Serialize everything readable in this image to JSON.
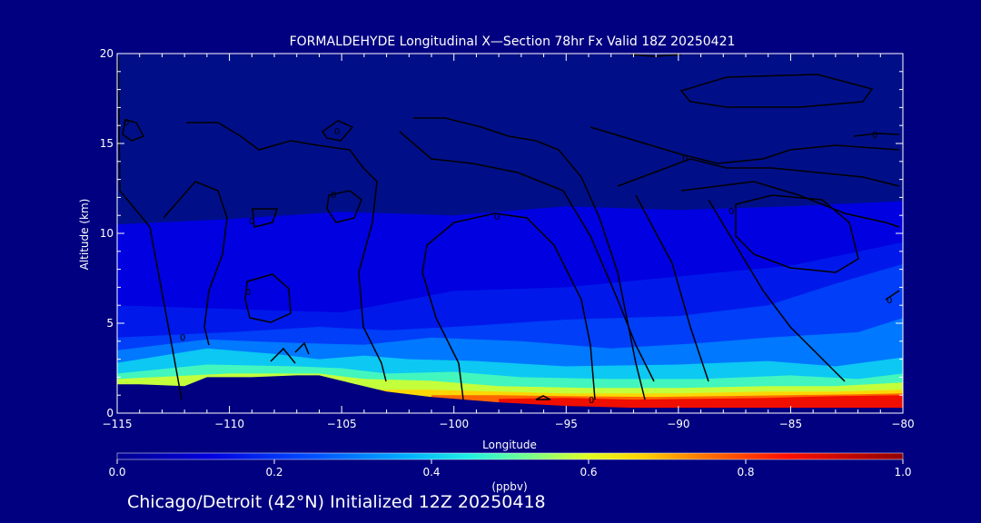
{
  "chart_data": {
    "type": "heatmap",
    "title": "FORMALDEHYDE Longitudinal X—Section 78hr  Fx Valid 18Z 20250421",
    "xlabel": "Longitude",
    "ylabel": "Altitude (km)",
    "xlim": [
      -115,
      -80
    ],
    "ylim": [
      0,
      20
    ],
    "x_ticks": [
      -115,
      -110,
      -105,
      -100,
      -95,
      -90,
      -85,
      -80
    ],
    "x_tick_labels": [
      "−115",
      "−110",
      "−105",
      "−100",
      "−95",
      "−90",
      "−85",
      "−80"
    ],
    "y_ticks": [
      0,
      5,
      10,
      15,
      20
    ],
    "y_tick_labels": [
      "0",
      "5",
      "10",
      "15",
      "20"
    ],
    "colorbar": {
      "label": "(ppbv)",
      "range": [
        0.0,
        1.0
      ],
      "ticks": [
        0.0,
        0.2,
        0.4,
        0.6,
        0.8,
        1.0
      ],
      "tick_labels": [
        "0.0",
        "0.2",
        "0.4",
        "0.6",
        "0.8",
        "1.0"
      ]
    },
    "terrain_km": [
      [
        -115,
        1.6
      ],
      [
        -114,
        1.6
      ],
      [
        -112,
        1.5
      ],
      [
        -111,
        2.0
      ],
      [
        -109,
        2.0
      ],
      [
        -107,
        2.1
      ],
      [
        -106,
        2.1
      ],
      [
        -105,
        1.8
      ],
      [
        -103,
        1.2
      ],
      [
        -101,
        0.9
      ],
      [
        -98,
        0.6
      ],
      [
        -95,
        0.4
      ],
      [
        -92,
        0.3
      ],
      [
        -88,
        0.3
      ],
      [
        -84,
        0.3
      ],
      [
        -80,
        0.3
      ]
    ],
    "concentration_layers": [
      {
        "value": 0.12,
        "profile": [
          [
            -115,
            10.5
          ],
          [
            -110,
            10.8
          ],
          [
            -105,
            11.2
          ],
          [
            -100,
            11.0
          ],
          [
            -95,
            11.5
          ],
          [
            -90,
            11.3
          ],
          [
            -85,
            11.5
          ],
          [
            -80,
            11.8
          ]
        ]
      },
      {
        "value": 0.16,
        "profile": [
          [
            -115,
            6.0
          ],
          [
            -110,
            5.8
          ],
          [
            -105,
            5.6
          ],
          [
            -100,
            6.8
          ],
          [
            -95,
            7.0
          ],
          [
            -90,
            7.6
          ],
          [
            -85,
            8.2
          ],
          [
            -80,
            9.5
          ]
        ]
      },
      {
        "value": 0.22,
        "profile": [
          [
            -115,
            4.2
          ],
          [
            -110,
            4.5
          ],
          [
            -106,
            4.8
          ],
          [
            -103,
            4.6
          ],
          [
            -100,
            4.8
          ],
          [
            -95,
            5.2
          ],
          [
            -90,
            5.4
          ],
          [
            -86,
            6.0
          ],
          [
            -83,
            7.2
          ],
          [
            -80,
            8.3
          ]
        ]
      },
      {
        "value": 0.3,
        "profile": [
          [
            -115,
            3.5
          ],
          [
            -111,
            4.1
          ],
          [
            -107,
            3.9
          ],
          [
            -104,
            3.8
          ],
          [
            -101,
            4.2
          ],
          [
            -97,
            4.0
          ],
          [
            -93,
            3.6
          ],
          [
            -89,
            3.9
          ],
          [
            -86,
            4.2
          ],
          [
            -82,
            4.5
          ],
          [
            -80,
            5.3
          ]
        ]
      },
      {
        "value": 0.4,
        "profile": [
          [
            -115,
            2.8
          ],
          [
            -111,
            3.6
          ],
          [
            -108,
            3.3
          ],
          [
            -106,
            3.0
          ],
          [
            -104,
            3.2
          ],
          [
            -102,
            3.0
          ],
          [
            -99,
            2.9
          ],
          [
            -95,
            2.6
          ],
          [
            -90,
            2.7
          ],
          [
            -86,
            2.9
          ],
          [
            -83,
            2.6
          ],
          [
            -80,
            3.1
          ]
        ]
      },
      {
        "value": 0.48,
        "profile": [
          [
            -115,
            2.2
          ],
          [
            -111,
            2.7
          ],
          [
            -107,
            2.6
          ],
          [
            -105,
            2.5
          ],
          [
            -103,
            2.2
          ],
          [
            -100,
            2.3
          ],
          [
            -97,
            2.0
          ],
          [
            -93,
            1.9
          ],
          [
            -89,
            1.9
          ],
          [
            -85,
            2.1
          ],
          [
            -82,
            1.9
          ],
          [
            -80,
            2.2
          ]
        ]
      },
      {
        "value": 0.58,
        "profile": [
          [
            -115,
            1.9
          ],
          [
            -110,
            2.2
          ],
          [
            -106,
            2.2
          ],
          [
            -104,
            1.9
          ],
          [
            -101,
            1.8
          ],
          [
            -98,
            1.5
          ],
          [
            -94,
            1.4
          ],
          [
            -90,
            1.4
          ],
          [
            -86,
            1.5
          ],
          [
            -83,
            1.5
          ],
          [
            -80,
            1.7
          ]
        ]
      },
      {
        "value": 0.66,
        "profile": [
          [
            -104,
            1.3
          ],
          [
            -101,
            1.3
          ],
          [
            -98,
            1.2
          ],
          [
            -95,
            1.1
          ],
          [
            -90,
            1.1
          ],
          [
            -86,
            1.2
          ],
          [
            -83,
            1.2
          ],
          [
            -80,
            1.3
          ]
        ]
      },
      {
        "value": 0.76,
        "profile": [
          [
            -101,
            1.0
          ],
          [
            -98,
            1.0
          ],
          [
            -95,
            0.95
          ],
          [
            -91,
            0.9
          ],
          [
            -88,
            0.95
          ],
          [
            -85,
            1.0
          ],
          [
            -82,
            1.05
          ],
          [
            -80,
            1.1
          ]
        ]
      },
      {
        "value": 0.87,
        "profile": [
          [
            -98,
            0.8
          ],
          [
            -95,
            0.85
          ],
          [
            -92,
            0.75
          ],
          [
            -89,
            0.8
          ],
          [
            -86,
            0.85
          ],
          [
            -83,
            0.95
          ],
          [
            -80,
            1.0
          ]
        ]
      }
    ],
    "contour_label": "0"
  },
  "footer": {
    "text": "Chicago/Detroit (42°N) Initialized 12Z 20250418"
  }
}
